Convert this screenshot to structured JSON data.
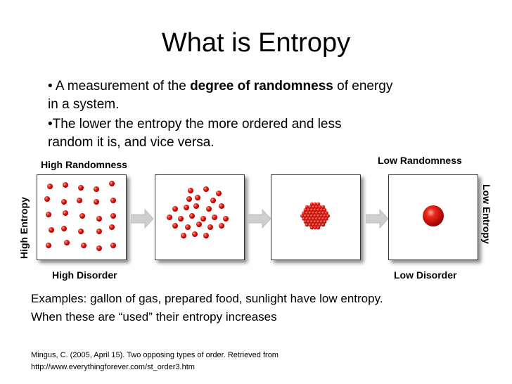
{
  "slide": {
    "title": "What is Entropy",
    "bullet1_prefix": "A measurement of the",
    "bullet1_bold": "degree of randomness",
    "bullet1_suffix": "of energy",
    "bullet1_line2": "in a system.",
    "bullet2_line1": "The lower the entropy the more ordered and less",
    "bullet2_line2": "random it is,  and vice versa."
  },
  "diagram": {
    "high_randomness": "High Randomness",
    "low_randomness": "Low Randomness",
    "high_entropy": "High Entropy",
    "low_entropy": "Low Entropy",
    "high_disorder": "High Disorder",
    "low_disorder": "Low Disorder",
    "particle_color": "#e01010",
    "arrow_color": "#cccccc",
    "panels": [
      "scattered particles",
      "loosely grouped particles",
      "tightly packed cluster",
      "single sphere"
    ]
  },
  "examples": {
    "line1": "Examples:  gallon of gas, prepared food, sunlight have low entropy.",
    "line2": "When these are “used” their entropy increases"
  },
  "citation": {
    "line1": "Mingus, C. (2005, April 15). Two opposing types of order. Retrieved from",
    "line2": "http://www.everythingforever.com/st_order3.htm"
  }
}
